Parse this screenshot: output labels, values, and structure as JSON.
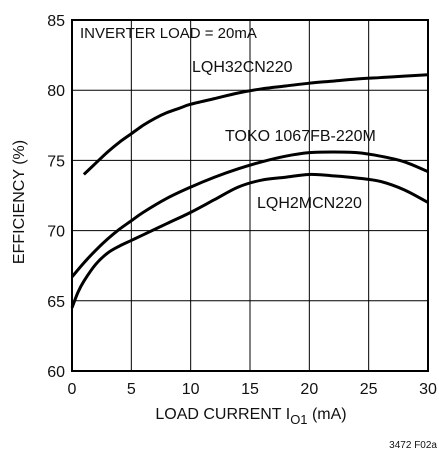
{
  "chart_data": {
    "type": "line",
    "title": "",
    "xlabel": {
      "main": "LOAD CURRENT I",
      "sub": "O1",
      "unit": " (mA)"
    },
    "ylabel": "EFFICIENCY (%)",
    "xlim": [
      0,
      30
    ],
    "ylim": [
      60,
      85
    ],
    "xticks": [
      0,
      5,
      10,
      15,
      20,
      25,
      30
    ],
    "yticks": [
      60,
      65,
      70,
      75,
      80,
      85
    ],
    "grid": true,
    "annotation": "INVERTER LOAD = 20mA",
    "figure_id": "3472 F02a",
    "series": [
      {
        "name": "LQH32CN220",
        "x": [
          1,
          2,
          3,
          4,
          5,
          6,
          7,
          8,
          9,
          10,
          12,
          14,
          16,
          18,
          20,
          22,
          24,
          26,
          28,
          30
        ],
        "y": [
          74.0,
          74.8,
          75.6,
          76.3,
          76.9,
          77.5,
          78.0,
          78.4,
          78.7,
          79.0,
          79.4,
          79.8,
          80.1,
          80.3,
          80.5,
          80.65,
          80.8,
          80.9,
          81.0,
          81.1
        ]
      },
      {
        "name": "TOKO 1067FB-220M",
        "x": [
          0,
          1,
          2,
          3,
          4,
          5,
          6,
          8,
          10,
          12,
          14,
          16,
          18,
          20,
          22,
          24,
          26,
          28,
          30
        ],
        "y": [
          66.7,
          67.7,
          68.6,
          69.4,
          70.1,
          70.7,
          71.3,
          72.3,
          73.1,
          73.8,
          74.4,
          74.9,
          75.3,
          75.55,
          75.6,
          75.55,
          75.3,
          74.9,
          74.2
        ]
      },
      {
        "name": "LQH2MCN220",
        "x": [
          0,
          0.5,
          1,
          2,
          3,
          4,
          5,
          6,
          8,
          10,
          12,
          14,
          16,
          18,
          20,
          22,
          24,
          26,
          28,
          30
        ],
        "y": [
          64.5,
          65.6,
          66.4,
          67.6,
          68.4,
          68.9,
          69.3,
          69.7,
          70.5,
          71.3,
          72.2,
          73.1,
          73.6,
          73.8,
          74.0,
          73.9,
          73.75,
          73.5,
          72.9,
          72.0
        ]
      }
    ]
  }
}
